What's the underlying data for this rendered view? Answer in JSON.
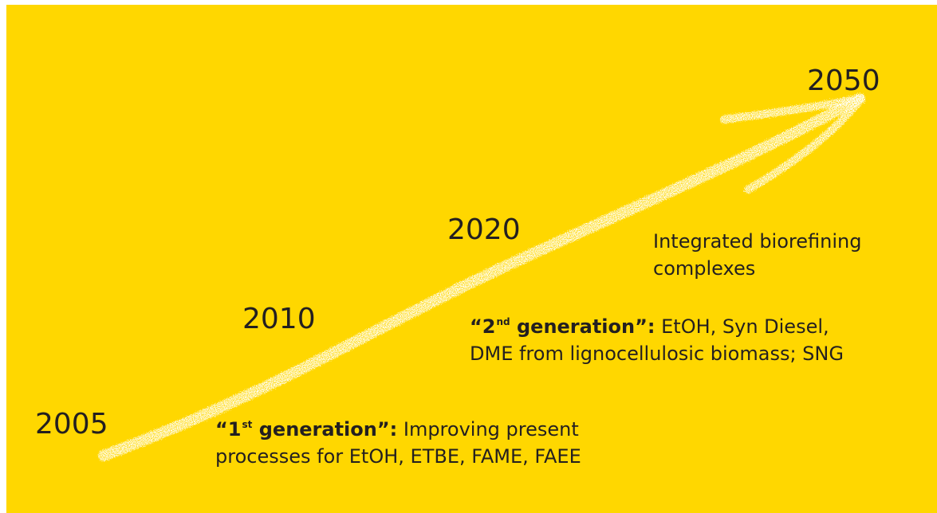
{
  "background_color": "#FFD700",
  "arrow_color": "#ffffff",
  "text_color": "#231f20",
  "years": {
    "y2005": "2005",
    "y2010": "2010",
    "y2020": "2020",
    "y2050": "2050"
  },
  "gen1": {
    "quote_open": "“",
    "label_pre": "1",
    "label_sup": "st",
    "label_post": " generation",
    "quote_close": "”:",
    "text_line1": " Improving present",
    "text_line2": "processes for EtOH, ETBE, FAME, FAEE"
  },
  "gen2": {
    "quote_open": "“",
    "label_pre": "2",
    "label_sup": "nd",
    "label_post": " generation",
    "quote_close": "”:",
    "text_line1": " EtOH, Syn Diesel,",
    "text_line2": "DME from lignocellulosic biomass; SNG"
  },
  "integrated": {
    "line1": "Integrated biorefining",
    "line2": "complexes"
  }
}
